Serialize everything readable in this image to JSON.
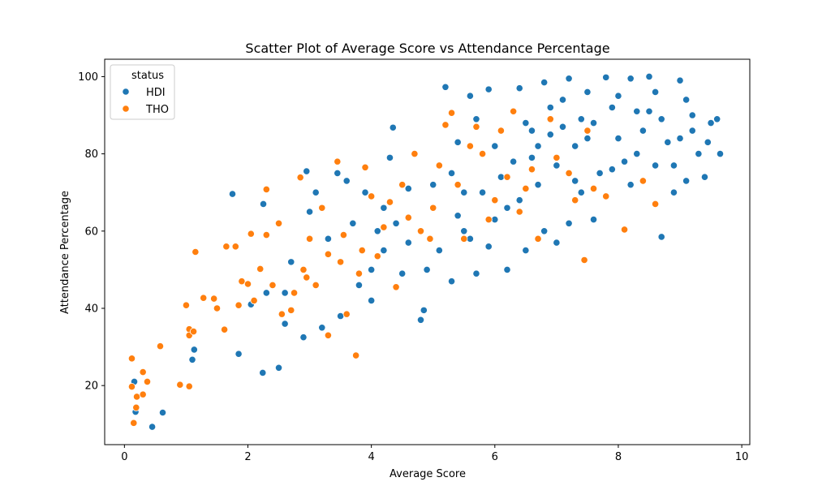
{
  "chart_data": {
    "type": "scatter",
    "title": "Scatter Plot of Average Score vs Attendance Percentage",
    "xlabel": "Average Score",
    "ylabel": "Attendance Percentage",
    "xlim": [
      -0.32,
      10.13
    ],
    "ylim": [
      4.7,
      104.5
    ],
    "xticks": [
      "0",
      "2",
      "4",
      "6",
      "8",
      "10"
    ],
    "xtick_values": [
      0,
      2,
      4,
      6,
      8,
      10
    ],
    "yticks": [
      "20",
      "40",
      "60",
      "80",
      "100"
    ],
    "ytick_values": [
      20,
      40,
      60,
      80,
      100
    ],
    "grid": false,
    "legend": {
      "title": "status",
      "placement": "top-left"
    },
    "series": [
      {
        "name": "HDI",
        "color": "#1f77b4",
        "points": [
          [
            0.16,
            21.0
          ],
          [
            0.18,
            13.2
          ],
          [
            0.45,
            9.3
          ],
          [
            0.62,
            13.0
          ],
          [
            1.1,
            26.7
          ],
          [
            1.13,
            29.3
          ],
          [
            1.75,
            69.6
          ],
          [
            2.25,
            67.0
          ],
          [
            2.24,
            23.3
          ],
          [
            2.5,
            24.6
          ],
          [
            1.85,
            28.2
          ],
          [
            2.05,
            41.0
          ],
          [
            2.3,
            44.0
          ],
          [
            2.6,
            36.0
          ],
          [
            2.7,
            52.0
          ],
          [
            3.0,
            65.0
          ],
          [
            3.1,
            70.0
          ],
          [
            2.95,
            75.5
          ],
          [
            3.45,
            75.0
          ],
          [
            3.6,
            73.0
          ],
          [
            3.9,
            70.0
          ],
          [
            4.3,
            79.0
          ],
          [
            4.35,
            86.8
          ],
          [
            4.1,
            60.0
          ],
          [
            4.2,
            55.0
          ],
          [
            4.5,
            49.0
          ],
          [
            4.0,
            42.0
          ],
          [
            4.85,
            39.5
          ],
          [
            4.8,
            37.0
          ],
          [
            4.7,
            80.0
          ],
          [
            5.2,
            97.3
          ],
          [
            5.3,
            75.0
          ],
          [
            5.4,
            83.0
          ],
          [
            5.5,
            70.0
          ],
          [
            5.6,
            95.0
          ],
          [
            5.7,
            89.0
          ],
          [
            5.9,
            96.7
          ],
          [
            6.0,
            82.0
          ],
          [
            6.1,
            74.0
          ],
          [
            6.2,
            66.0
          ],
          [
            6.3,
            91.0
          ],
          [
            6.4,
            97.0
          ],
          [
            6.5,
            88.0
          ],
          [
            6.6,
            79.0
          ],
          [
            6.7,
            72.0
          ],
          [
            6.8,
            98.5
          ],
          [
            6.9,
            85.0
          ],
          [
            7.0,
            77.0
          ],
          [
            7.1,
            94.0
          ],
          [
            7.2,
            99.5
          ],
          [
            7.3,
            82.0
          ],
          [
            7.4,
            70.0
          ],
          [
            7.5,
            96.0
          ],
          [
            7.6,
            88.0
          ],
          [
            7.7,
            75.0
          ],
          [
            7.8,
            99.8
          ],
          [
            7.9,
            92.0
          ],
          [
            8.0,
            84.0
          ],
          [
            8.1,
            78.0
          ],
          [
            8.2,
            99.5
          ],
          [
            8.3,
            91.0
          ],
          [
            8.4,
            86.0
          ],
          [
            8.5,
            100.0
          ],
          [
            8.6,
            96.0
          ],
          [
            8.7,
            89.0
          ],
          [
            8.8,
            83.0
          ],
          [
            8.9,
            77.0
          ],
          [
            9.0,
            99.0
          ],
          [
            9.1,
            94.0
          ],
          [
            9.2,
            86.0
          ],
          [
            9.3,
            80.0
          ],
          [
            9.4,
            74.0
          ],
          [
            9.5,
            88.0
          ],
          [
            9.65,
            80.0
          ],
          [
            9.6,
            89.0
          ],
          [
            9.45,
            83.0
          ],
          [
            8.7,
            58.5
          ],
          [
            7.6,
            63.0
          ],
          [
            7.0,
            57.0
          ],
          [
            6.5,
            55.0
          ],
          [
            6.2,
            50.0
          ],
          [
            5.9,
            56.0
          ],
          [
            5.7,
            49.0
          ],
          [
            5.3,
            47.0
          ],
          [
            5.5,
            60.0
          ],
          [
            6.8,
            60.0
          ],
          [
            7.2,
            62.0
          ],
          [
            7.8,
            69.0
          ],
          [
            8.2,
            72.0
          ],
          [
            8.9,
            70.0
          ],
          [
            9.1,
            73.0
          ],
          [
            6.6,
            86.0
          ],
          [
            6.9,
            92.0
          ],
          [
            7.4,
            89.0
          ],
          [
            8.0,
            95.0
          ],
          [
            8.5,
            91.0
          ],
          [
            7.9,
            76.0
          ],
          [
            7.3,
            73.0
          ],
          [
            6.4,
            68.0
          ],
          [
            6.0,
            63.0
          ],
          [
            5.6,
            58.0
          ],
          [
            5.1,
            55.0
          ],
          [
            4.9,
            50.0
          ],
          [
            4.6,
            57.0
          ],
          [
            4.4,
            62.0
          ],
          [
            4.0,
            50.0
          ],
          [
            3.8,
            46.0
          ],
          [
            3.5,
            38.0
          ],
          [
            3.2,
            35.0
          ],
          [
            2.9,
            32.5
          ],
          [
            2.6,
            44.0
          ],
          [
            3.3,
            58.0
          ],
          [
            3.7,
            62.0
          ],
          [
            4.2,
            66.0
          ],
          [
            4.6,
            71.0
          ],
          [
            5.0,
            72.0
          ],
          [
            5.4,
            64.0
          ],
          [
            5.8,
            70.0
          ],
          [
            6.3,
            78.0
          ],
          [
            6.7,
            82.0
          ],
          [
            7.1,
            87.0
          ],
          [
            7.5,
            84.0
          ],
          [
            8.3,
            80.0
          ],
          [
            8.6,
            77.0
          ],
          [
            9.2,
            90.0
          ],
          [
            9.0,
            84.0
          ]
        ]
      },
      {
        "name": "THO",
        "color": "#ff7f0e",
        "points": [
          [
            0.12,
            27.0
          ],
          [
            0.12,
            19.7
          ],
          [
            0.15,
            10.3
          ],
          [
            0.19,
            14.3
          ],
          [
            0.2,
            17.1
          ],
          [
            0.3,
            17.7
          ],
          [
            0.3,
            23.5
          ],
          [
            0.37,
            21.0
          ],
          [
            0.58,
            30.2
          ],
          [
            0.9,
            20.2
          ],
          [
            1.05,
            19.8
          ],
          [
            1.0,
            40.8
          ],
          [
            1.05,
            34.6
          ],
          [
            1.05,
            33.0
          ],
          [
            1.12,
            34.0
          ],
          [
            1.15,
            54.6
          ],
          [
            1.28,
            42.7
          ],
          [
            1.45,
            42.5
          ],
          [
            1.5,
            40.0
          ],
          [
            1.62,
            34.5
          ],
          [
            1.65,
            56.0
          ],
          [
            1.8,
            56.0
          ],
          [
            1.85,
            40.8
          ],
          [
            1.9,
            47.0
          ],
          [
            2.0,
            46.3
          ],
          [
            2.05,
            59.3
          ],
          [
            2.2,
            50.2
          ],
          [
            2.3,
            59.0
          ],
          [
            2.3,
            70.8
          ],
          [
            2.5,
            62.0
          ],
          [
            2.55,
            38.5
          ],
          [
            2.7,
            39.5
          ],
          [
            2.85,
            73.9
          ],
          [
            2.9,
            50.0
          ],
          [
            3.0,
            58.0
          ],
          [
            3.2,
            66.0
          ],
          [
            3.3,
            54.0
          ],
          [
            3.3,
            33.0
          ],
          [
            3.45,
            78.0
          ],
          [
            3.55,
            59.0
          ],
          [
            3.6,
            38.5
          ],
          [
            3.75,
            27.8
          ],
          [
            3.8,
            49.0
          ],
          [
            3.9,
            76.5
          ],
          [
            4.0,
            69.0
          ],
          [
            4.1,
            53.5
          ],
          [
            4.3,
            67.5
          ],
          [
            4.5,
            72.0
          ],
          [
            4.7,
            80.0
          ],
          [
            4.8,
            60.0
          ],
          [
            5.0,
            66.0
          ],
          [
            5.1,
            77.0
          ],
          [
            5.2,
            87.5
          ],
          [
            5.3,
            90.6
          ],
          [
            5.4,
            72.0
          ],
          [
            5.5,
            58.0
          ],
          [
            5.7,
            87.0
          ],
          [
            5.8,
            80.0
          ],
          [
            6.0,
            68.0
          ],
          [
            6.1,
            86.0
          ],
          [
            6.2,
            74.0
          ],
          [
            6.4,
            65.0
          ],
          [
            6.5,
            71.0
          ],
          [
            6.7,
            58.0
          ],
          [
            6.9,
            89.0
          ],
          [
            7.0,
            79.0
          ],
          [
            7.2,
            75.0
          ],
          [
            7.45,
            52.5
          ],
          [
            7.5,
            86.0
          ],
          [
            7.6,
            71.0
          ],
          [
            7.8,
            69.0
          ],
          [
            8.1,
            60.4
          ],
          [
            8.4,
            73.0
          ],
          [
            8.6,
            67.0
          ],
          [
            2.1,
            42.0
          ],
          [
            2.4,
            46.0
          ],
          [
            2.75,
            44.0
          ],
          [
            3.1,
            46.0
          ],
          [
            3.5,
            52.0
          ],
          [
            4.2,
            61.0
          ],
          [
            4.6,
            63.5
          ],
          [
            5.6,
            82.0
          ],
          [
            5.9,
            63.0
          ],
          [
            6.3,
            91.0
          ],
          [
            6.6,
            76.0
          ],
          [
            7.3,
            68.0
          ],
          [
            4.95,
            58.0
          ],
          [
            4.4,
            45.5
          ],
          [
            3.85,
            55.0
          ],
          [
            2.95,
            48.0
          ]
        ]
      }
    ]
  }
}
